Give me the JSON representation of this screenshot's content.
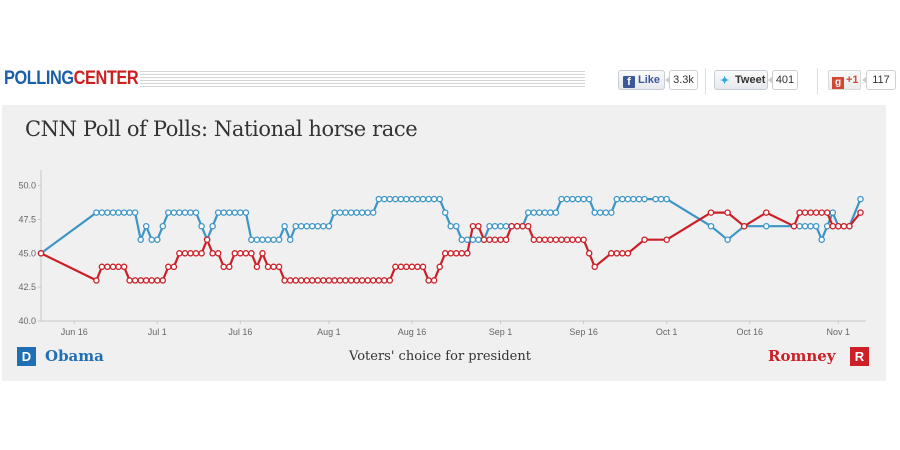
{
  "header": {
    "logo_part1": "POLLING",
    "logo_part2": "CENTER",
    "facebook_label": "Like",
    "facebook_count": "3.3k",
    "twitter_label": "Tweet",
    "twitter_count": "401",
    "gplus_label": "+1",
    "gplus_count": "117"
  },
  "panel": {
    "title": "CNN Poll of Polls: National horse race",
    "caption": "Voters' choice for president",
    "left_badge": "D",
    "left_name": "Obama",
    "right_badge": "R",
    "right_name": "Romney"
  },
  "colors": {
    "obama": "#3d95c6",
    "romney": "#cb1f26",
    "dem_badge": "#1f6fb5",
    "rep_badge": "#cc1f26",
    "logo_blue": "#1a5fa8",
    "logo_red": "#cc1f1f"
  },
  "chart_data": {
    "type": "line",
    "title": "CNN Poll of Polls: National horse race",
    "xlabel": "",
    "ylabel": "",
    "x_start": "2012-06-10",
    "x_end": "2012-11-06",
    "ylim": [
      40,
      51
    ],
    "yticks": [
      "50.0",
      "47.5",
      "45.0",
      "42.5",
      "40.0"
    ],
    "xticks": [
      {
        "label": "Jun 16",
        "date": "2012-06-16"
      },
      {
        "label": "Jul 1",
        "date": "2012-07-01"
      },
      {
        "label": "Jul 16",
        "date": "2012-07-16"
      },
      {
        "label": "Aug 1",
        "date": "2012-08-01"
      },
      {
        "label": "Aug 16",
        "date": "2012-08-16"
      },
      {
        "label": "Sep 1",
        "date": "2012-09-01"
      },
      {
        "label": "Sep 16",
        "date": "2012-09-16"
      },
      {
        "label": "Oct 1",
        "date": "2012-10-01"
      },
      {
        "label": "Oct 16",
        "date": "2012-10-16"
      },
      {
        "label": "Nov 1",
        "date": "2012-11-01"
      }
    ],
    "grid": false,
    "legend": "bottom",
    "series": [
      {
        "name": "Obama",
        "color": "#3d95c6",
        "points": [
          [
            "2012-06-10",
            45
          ],
          [
            "2012-06-20",
            48
          ],
          [
            "2012-06-21",
            48
          ],
          [
            "2012-06-22",
            48
          ],
          [
            "2012-06-23",
            48
          ],
          [
            "2012-06-24",
            48
          ],
          [
            "2012-06-25",
            48
          ],
          [
            "2012-06-26",
            48
          ],
          [
            "2012-06-27",
            48
          ],
          [
            "2012-06-28",
            46
          ],
          [
            "2012-06-29",
            47
          ],
          [
            "2012-06-30",
            46
          ],
          [
            "2012-07-01",
            46
          ],
          [
            "2012-07-02",
            47
          ],
          [
            "2012-07-03",
            48
          ],
          [
            "2012-07-04",
            48
          ],
          [
            "2012-07-05",
            48
          ],
          [
            "2012-07-06",
            48
          ],
          [
            "2012-07-07",
            48
          ],
          [
            "2012-07-08",
            48
          ],
          [
            "2012-07-09",
            47
          ],
          [
            "2012-07-10",
            46
          ],
          [
            "2012-07-11",
            47
          ],
          [
            "2012-07-12",
            48
          ],
          [
            "2012-07-13",
            48
          ],
          [
            "2012-07-14",
            48
          ],
          [
            "2012-07-15",
            48
          ],
          [
            "2012-07-16",
            48
          ],
          [
            "2012-07-17",
            48
          ],
          [
            "2012-07-18",
            46
          ],
          [
            "2012-07-19",
            46
          ],
          [
            "2012-07-20",
            46
          ],
          [
            "2012-07-21",
            46
          ],
          [
            "2012-07-22",
            46
          ],
          [
            "2012-07-23",
            46
          ],
          [
            "2012-07-24",
            47
          ],
          [
            "2012-07-25",
            46
          ],
          [
            "2012-07-26",
            47
          ],
          [
            "2012-07-27",
            47
          ],
          [
            "2012-07-28",
            47
          ],
          [
            "2012-07-29",
            47
          ],
          [
            "2012-07-30",
            47
          ],
          [
            "2012-07-31",
            47
          ],
          [
            "2012-08-01",
            47
          ],
          [
            "2012-08-02",
            48
          ],
          [
            "2012-08-03",
            48
          ],
          [
            "2012-08-04",
            48
          ],
          [
            "2012-08-05",
            48
          ],
          [
            "2012-08-06",
            48
          ],
          [
            "2012-08-07",
            48
          ],
          [
            "2012-08-08",
            48
          ],
          [
            "2012-08-09",
            48
          ],
          [
            "2012-08-10",
            49
          ],
          [
            "2012-08-11",
            49
          ],
          [
            "2012-08-12",
            49
          ],
          [
            "2012-08-13",
            49
          ],
          [
            "2012-08-14",
            49
          ],
          [
            "2012-08-15",
            49
          ],
          [
            "2012-08-16",
            49
          ],
          [
            "2012-08-17",
            49
          ],
          [
            "2012-08-18",
            49
          ],
          [
            "2012-08-19",
            49
          ],
          [
            "2012-08-20",
            49
          ],
          [
            "2012-08-21",
            49
          ],
          [
            "2012-08-22",
            48
          ],
          [
            "2012-08-23",
            47
          ],
          [
            "2012-08-24",
            47
          ],
          [
            "2012-08-25",
            46
          ],
          [
            "2012-08-26",
            46
          ],
          [
            "2012-08-27",
            46
          ],
          [
            "2012-08-28",
            46
          ],
          [
            "2012-08-29",
            46
          ],
          [
            "2012-08-30",
            47
          ],
          [
            "2012-08-31",
            47
          ],
          [
            "2012-09-01",
            47
          ],
          [
            "2012-09-02",
            47
          ],
          [
            "2012-09-03",
            47
          ],
          [
            "2012-09-04",
            47
          ],
          [
            "2012-09-05",
            47
          ],
          [
            "2012-09-06",
            48
          ],
          [
            "2012-09-07",
            48
          ],
          [
            "2012-09-08",
            48
          ],
          [
            "2012-09-09",
            48
          ],
          [
            "2012-09-10",
            48
          ],
          [
            "2012-09-11",
            48
          ],
          [
            "2012-09-12",
            49
          ],
          [
            "2012-09-13",
            49
          ],
          [
            "2012-09-14",
            49
          ],
          [
            "2012-09-15",
            49
          ],
          [
            "2012-09-16",
            49
          ],
          [
            "2012-09-17",
            49
          ],
          [
            "2012-09-18",
            48
          ],
          [
            "2012-09-19",
            48
          ],
          [
            "2012-09-20",
            48
          ],
          [
            "2012-09-21",
            48
          ],
          [
            "2012-09-22",
            49
          ],
          [
            "2012-09-23",
            49
          ],
          [
            "2012-09-24",
            49
          ],
          [
            "2012-09-25",
            49
          ],
          [
            "2012-09-26",
            49
          ],
          [
            "2012-09-27",
            49
          ],
          [
            "2012-09-29",
            49
          ],
          [
            "2012-09-30",
            49
          ],
          [
            "2012-10-01",
            49
          ],
          [
            "2012-10-09",
            47
          ],
          [
            "2012-10-12",
            46
          ],
          [
            "2012-10-15",
            47
          ],
          [
            "2012-10-19",
            47
          ],
          [
            "2012-10-24",
            47
          ],
          [
            "2012-10-25",
            47
          ],
          [
            "2012-10-26",
            47
          ],
          [
            "2012-10-27",
            47
          ],
          [
            "2012-10-28",
            47
          ],
          [
            "2012-10-29",
            46
          ],
          [
            "2012-10-30",
            47
          ],
          [
            "2012-10-31",
            48
          ],
          [
            "2012-11-01",
            47
          ],
          [
            "2012-11-02",
            47
          ],
          [
            "2012-11-03",
            47
          ],
          [
            "2012-11-05",
            49
          ]
        ]
      },
      {
        "name": "Romney",
        "color": "#cb1f26",
        "points": [
          [
            "2012-06-10",
            45
          ],
          [
            "2012-06-20",
            43
          ],
          [
            "2012-06-21",
            44
          ],
          [
            "2012-06-22",
            44
          ],
          [
            "2012-06-23",
            44
          ],
          [
            "2012-06-24",
            44
          ],
          [
            "2012-06-25",
            44
          ],
          [
            "2012-06-26",
            43
          ],
          [
            "2012-06-27",
            43
          ],
          [
            "2012-06-28",
            43
          ],
          [
            "2012-06-29",
            43
          ],
          [
            "2012-06-30",
            43
          ],
          [
            "2012-07-01",
            43
          ],
          [
            "2012-07-02",
            43
          ],
          [
            "2012-07-03",
            44
          ],
          [
            "2012-07-04",
            44
          ],
          [
            "2012-07-05",
            45
          ],
          [
            "2012-07-06",
            45
          ],
          [
            "2012-07-07",
            45
          ],
          [
            "2012-07-08",
            45
          ],
          [
            "2012-07-09",
            45
          ],
          [
            "2012-07-10",
            46
          ],
          [
            "2012-07-11",
            45
          ],
          [
            "2012-07-12",
            45
          ],
          [
            "2012-07-13",
            44
          ],
          [
            "2012-07-14",
            44
          ],
          [
            "2012-07-15",
            45
          ],
          [
            "2012-07-16",
            45
          ],
          [
            "2012-07-17",
            45
          ],
          [
            "2012-07-18",
            45
          ],
          [
            "2012-07-19",
            44
          ],
          [
            "2012-07-20",
            45
          ],
          [
            "2012-07-21",
            44
          ],
          [
            "2012-07-22",
            44
          ],
          [
            "2012-07-23",
            44
          ],
          [
            "2012-07-24",
            43
          ],
          [
            "2012-07-25",
            43
          ],
          [
            "2012-07-26",
            43
          ],
          [
            "2012-07-27",
            43
          ],
          [
            "2012-07-28",
            43
          ],
          [
            "2012-07-29",
            43
          ],
          [
            "2012-07-30",
            43
          ],
          [
            "2012-07-31",
            43
          ],
          [
            "2012-08-01",
            43
          ],
          [
            "2012-08-02",
            43
          ],
          [
            "2012-08-03",
            43
          ],
          [
            "2012-08-04",
            43
          ],
          [
            "2012-08-05",
            43
          ],
          [
            "2012-08-06",
            43
          ],
          [
            "2012-08-07",
            43
          ],
          [
            "2012-08-08",
            43
          ],
          [
            "2012-08-09",
            43
          ],
          [
            "2012-08-10",
            43
          ],
          [
            "2012-08-11",
            43
          ],
          [
            "2012-08-12",
            43
          ],
          [
            "2012-08-13",
            44
          ],
          [
            "2012-08-14",
            44
          ],
          [
            "2012-08-15",
            44
          ],
          [
            "2012-08-16",
            44
          ],
          [
            "2012-08-17",
            44
          ],
          [
            "2012-08-18",
            44
          ],
          [
            "2012-08-19",
            43
          ],
          [
            "2012-08-20",
            43
          ],
          [
            "2012-08-21",
            44
          ],
          [
            "2012-08-22",
            45
          ],
          [
            "2012-08-23",
            45
          ],
          [
            "2012-08-24",
            45
          ],
          [
            "2012-08-25",
            45
          ],
          [
            "2012-08-26",
            45
          ],
          [
            "2012-08-27",
            47
          ],
          [
            "2012-08-28",
            47
          ],
          [
            "2012-08-29",
            46
          ],
          [
            "2012-08-30",
            46
          ],
          [
            "2012-08-31",
            46
          ],
          [
            "2012-09-01",
            46
          ],
          [
            "2012-09-02",
            46
          ],
          [
            "2012-09-03",
            47
          ],
          [
            "2012-09-04",
            47
          ],
          [
            "2012-09-05",
            47
          ],
          [
            "2012-09-06",
            47
          ],
          [
            "2012-09-07",
            46
          ],
          [
            "2012-09-08",
            46
          ],
          [
            "2012-09-09",
            46
          ],
          [
            "2012-09-10",
            46
          ],
          [
            "2012-09-11",
            46
          ],
          [
            "2012-09-12",
            46
          ],
          [
            "2012-09-13",
            46
          ],
          [
            "2012-09-14",
            46
          ],
          [
            "2012-09-15",
            46
          ],
          [
            "2012-09-16",
            46
          ],
          [
            "2012-09-17",
            45
          ],
          [
            "2012-09-18",
            44
          ],
          [
            "2012-09-21",
            45
          ],
          [
            "2012-09-22",
            45
          ],
          [
            "2012-09-23",
            45
          ],
          [
            "2012-09-24",
            45
          ],
          [
            "2012-09-27",
            46
          ],
          [
            "2012-10-01",
            46
          ],
          [
            "2012-10-09",
            48
          ],
          [
            "2012-10-12",
            48
          ],
          [
            "2012-10-15",
            47
          ],
          [
            "2012-10-19",
            48
          ],
          [
            "2012-10-24",
            47
          ],
          [
            "2012-10-25",
            48
          ],
          [
            "2012-10-26",
            48
          ],
          [
            "2012-10-27",
            48
          ],
          [
            "2012-10-28",
            48
          ],
          [
            "2012-10-29",
            48
          ],
          [
            "2012-10-30",
            48
          ],
          [
            "2012-10-31",
            47
          ],
          [
            "2012-11-01",
            47
          ],
          [
            "2012-11-02",
            47
          ],
          [
            "2012-11-03",
            47
          ],
          [
            "2012-11-05",
            48
          ]
        ]
      }
    ]
  }
}
